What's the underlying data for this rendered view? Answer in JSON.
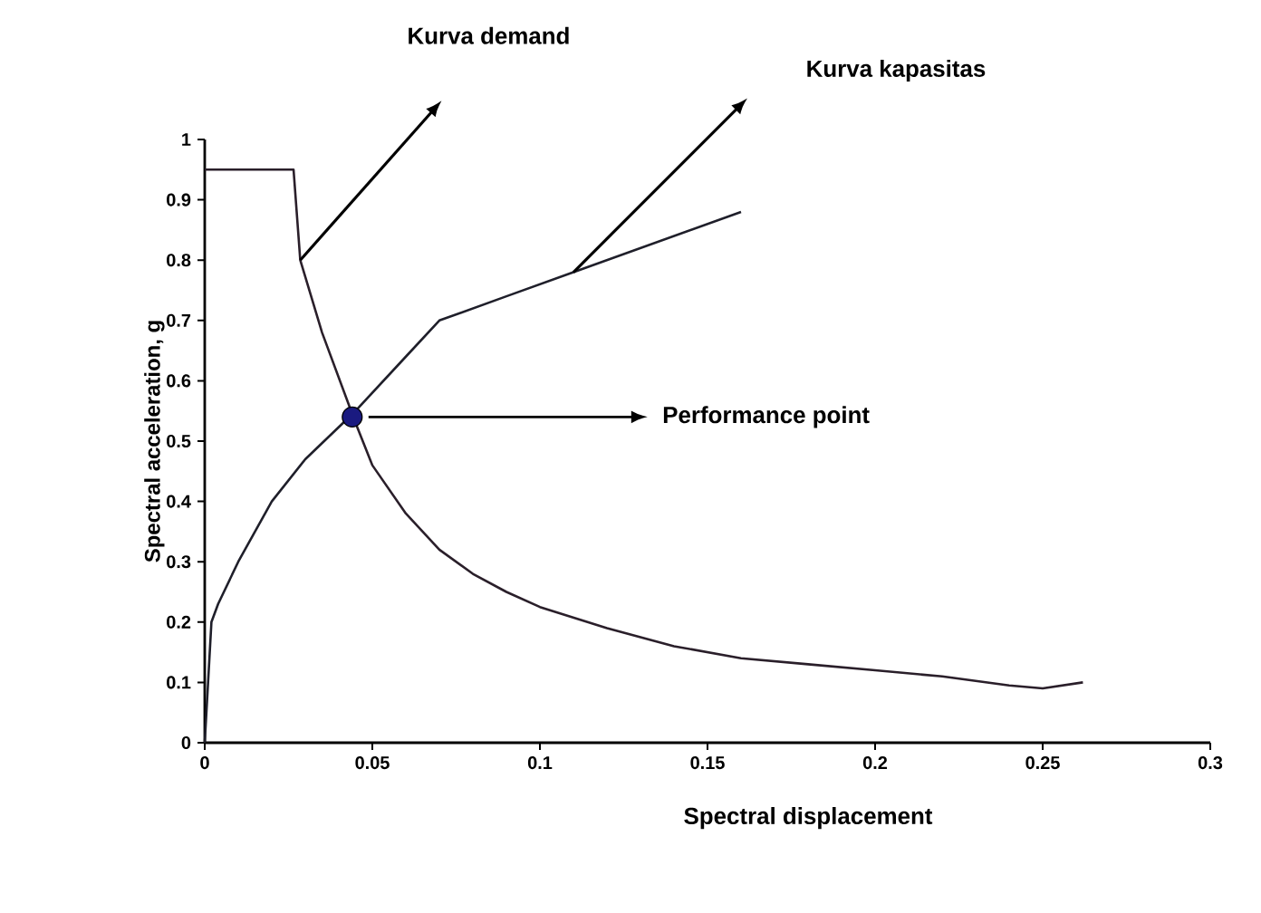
{
  "chart_data": {
    "type": "line",
    "xlabel": "Spectral displacement",
    "ylabel": "Spectral acceleration, g",
    "xlim": [
      0,
      0.3
    ],
    "ylim": [
      0,
      1
    ],
    "xticks": [
      0,
      0.05,
      0.1,
      0.15,
      0.2,
      0.25,
      0.3
    ],
    "yticks": [
      0,
      0.1,
      0.2,
      0.3,
      0.4,
      0.5,
      0.6,
      0.7,
      0.8,
      0.9,
      1
    ],
    "grid": false,
    "line_style": "solid",
    "series": [
      {
        "type": "line",
        "color": "#2a1f2a",
        "marker": "none",
        "x": [
          0,
          0.0265,
          0.0285,
          0.035,
          0.045,
          0.05,
          0.06,
          0.07,
          0.08,
          0.09,
          0.1,
          0.12,
          0.14,
          0.16,
          0.18,
          0.2,
          0.22,
          0.24,
          0.25,
          0.262
        ],
        "values": [
          0.95,
          0.95,
          0.8,
          0.68,
          0.53,
          0.46,
          0.38,
          0.32,
          0.28,
          0.25,
          0.225,
          0.19,
          0.16,
          0.14,
          0.13,
          0.12,
          0.11,
          0.095,
          0.09,
          0.1
        ]
      },
      {
        "type": "line",
        "color": "#1f1f2a",
        "marker": "none",
        "x": [
          0,
          0.001,
          0.002,
          0.004,
          0.01,
          0.02,
          0.03,
          0.045,
          0.06,
          0.07,
          0.09,
          0.11,
          0.13,
          0.16
        ],
        "values": [
          0,
          0.1,
          0.2,
          0.23,
          0.3,
          0.4,
          0.47,
          0.55,
          0.64,
          0.7,
          0.74,
          0.78,
          0.82,
          0.88
        ]
      },
      {
        "type": "scatter",
        "color": "#1a1a80",
        "marker": "circle",
        "x": [
          0.044
        ],
        "values": [
          0.54
        ]
      }
    ],
    "annotations": [
      "Kurva demand",
      "Kurva kapasitas",
      "Performance point"
    ]
  }
}
